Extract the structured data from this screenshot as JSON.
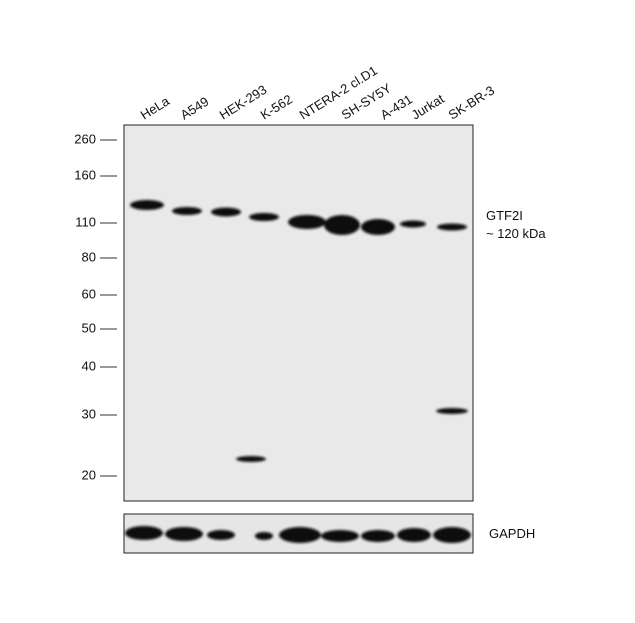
{
  "lanes": [
    "HeLa",
    "A549",
    "HEK-293",
    "K-562",
    "NTERA-2 cl.D1",
    "SH-SY5Y",
    "A-431",
    "Jurkat",
    "SK-BR-3"
  ],
  "markers": [
    "260",
    "160",
    "110",
    "80",
    "60",
    "50",
    "40",
    "30",
    "20"
  ],
  "target": {
    "name": "GTF2I",
    "size": "~ 120 kDa"
  },
  "loading_control": "GAPDH"
}
